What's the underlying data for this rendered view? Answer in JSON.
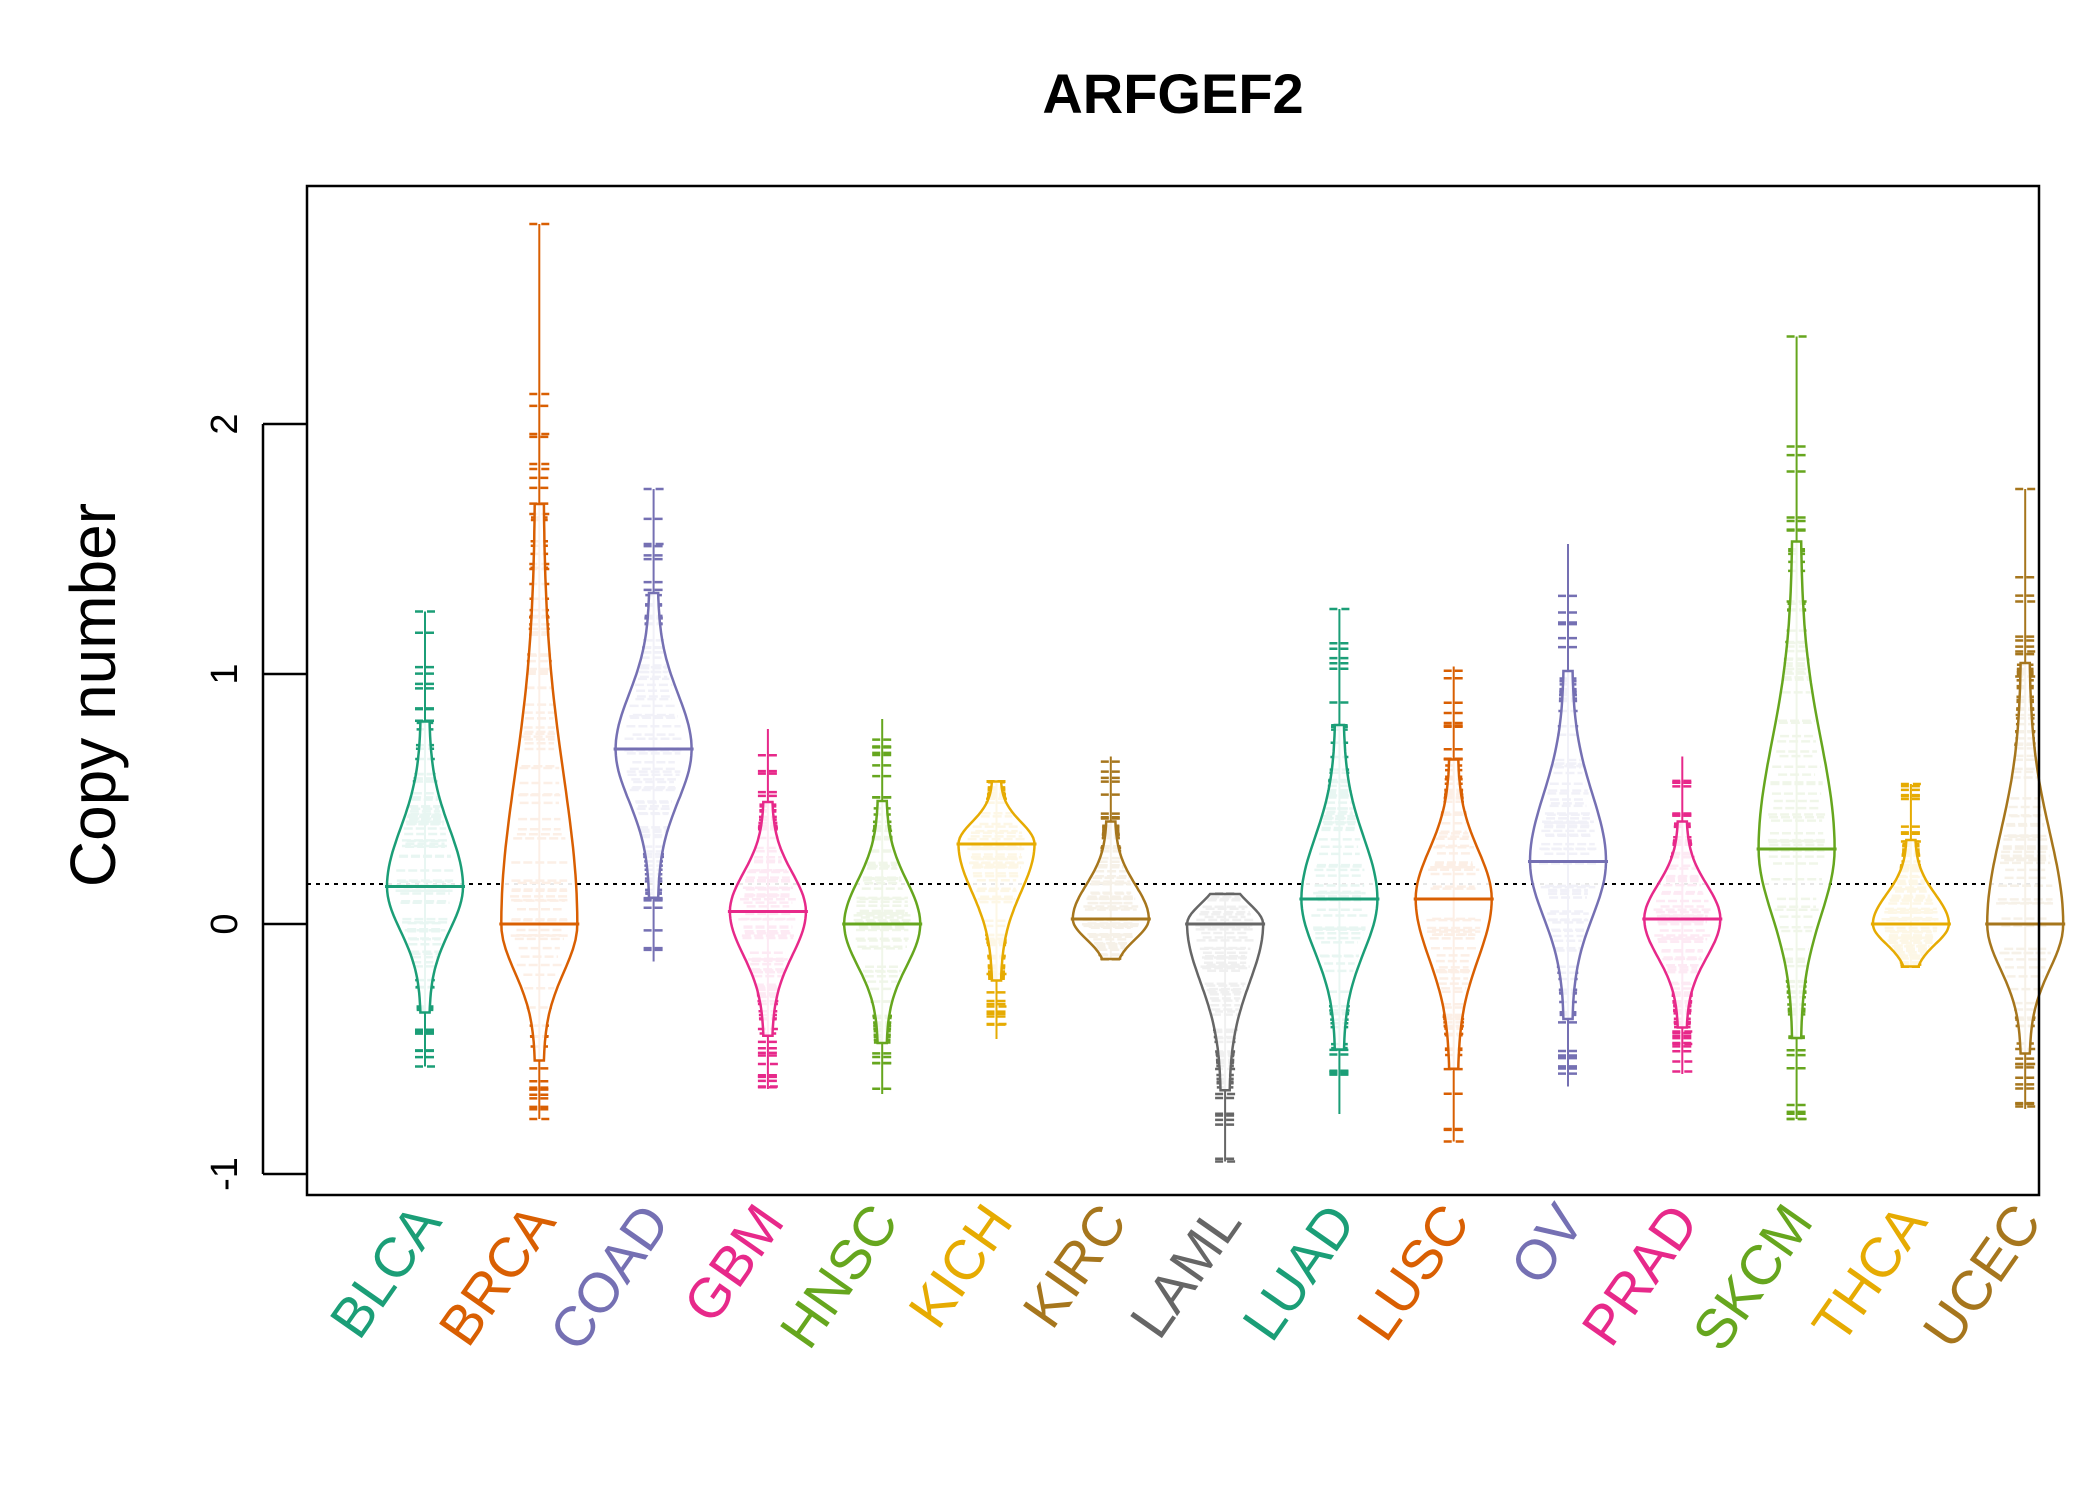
{
  "chart_data": {
    "type": "beanplot",
    "title": "ARFGEF2",
    "xlabel": "",
    "ylabel": "Copy number",
    "ylim": [
      -1.1,
      2.95
    ],
    "yticks": [
      -1,
      0,
      1,
      2
    ],
    "ytick_labels": [
      "-1",
      "0",
      "1",
      "2"
    ],
    "reference_line": 0.16,
    "grid": false,
    "legend": "none",
    "categories": [
      "BLCA",
      "BRCA",
      "COAD",
      "GBM",
      "HNSC",
      "KICH",
      "KIRC",
      "LAML",
      "LUAD",
      "LUSC",
      "OV",
      "PRAD",
      "SKCM",
      "THCA",
      "UCEC"
    ],
    "colors": [
      "#1B9E77",
      "#D95F02",
      "#7570B3",
      "#E7298A",
      "#66A61E",
      "#E6AB02",
      "#A6761D",
      "#666666",
      "#1B9E77",
      "#D95F02",
      "#7570B3",
      "#E7298A",
      "#66A61E",
      "#E6AB02",
      "#A6761D"
    ],
    "series": [
      {
        "category": "BLCA",
        "min": -0.57,
        "max": 1.25,
        "mode": 0.15,
        "outliers": [
          1.25,
          -0.57
        ]
      },
      {
        "category": "BRCA",
        "min": -0.78,
        "max": 2.8,
        "mode": 0.0,
        "outliers": [
          2.8,
          2.12,
          1.96,
          1.84,
          1.82,
          1.64,
          1.44,
          1.42,
          1.36,
          -0.78
        ]
      },
      {
        "category": "COAD",
        "min": -0.15,
        "max": 1.74,
        "mode": 0.7,
        "outliers": [
          1.74,
          1.52
        ]
      },
      {
        "category": "GBM",
        "min": -0.66,
        "max": 0.78,
        "mode": 0.05,
        "outliers": [
          -0.42,
          -0.56,
          -0.65
        ]
      },
      {
        "category": "HNSC",
        "min": -0.68,
        "max": 0.82,
        "mode": 0.0,
        "outliers": []
      },
      {
        "category": "KICH",
        "min": -0.46,
        "max": 0.57,
        "mode": 0.32,
        "outliers": [
          -0.2,
          -0.33,
          -0.4
        ]
      },
      {
        "category": "KIRC",
        "min": -0.14,
        "max": 0.67,
        "mode": 0.02,
        "outliers": []
      },
      {
        "category": "LAML",
        "min": -0.95,
        "max": 0.12,
        "mode": 0.0,
        "outliers": [
          -0.35,
          -0.51,
          -0.58,
          -0.68,
          -0.95
        ]
      },
      {
        "category": "LUAD",
        "min": -0.76,
        "max": 1.26,
        "mode": 0.1,
        "outliers": [
          1.26
        ]
      },
      {
        "category": "LUSC",
        "min": -0.87,
        "max": 1.03,
        "mode": 0.1,
        "outliers": [
          -0.87
        ]
      },
      {
        "category": "OV",
        "min": -0.65,
        "max": 1.52,
        "mode": 0.25,
        "outliers": []
      },
      {
        "category": "PRAD",
        "min": -0.6,
        "max": 0.67,
        "mode": 0.02,
        "outliers": [
          -0.43,
          -0.48,
          -0.55,
          -0.59
        ]
      },
      {
        "category": "SKCM",
        "min": -0.78,
        "max": 2.35,
        "mode": 0.3,
        "outliers": [
          2.35,
          1.29,
          1.11,
          -0.25,
          -0.78
        ]
      },
      {
        "category": "THCA",
        "min": -0.17,
        "max": 0.56,
        "mode": 0.0,
        "outliers": [
          0.56,
          0.33
        ]
      },
      {
        "category": "UCEC",
        "min": -0.74,
        "max": 1.74,
        "mode": 0.0,
        "outliers": [
          1.74,
          1.29,
          1.09,
          0.99,
          -0.5,
          -0.56,
          -0.73
        ]
      }
    ]
  }
}
